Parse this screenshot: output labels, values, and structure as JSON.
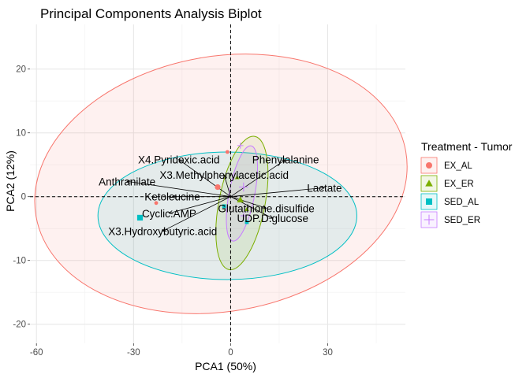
{
  "chart_data": {
    "type": "scatter",
    "title": "Principal Components Analysis Biplot",
    "xlabel": "PCA1 (50%)",
    "ylabel": "PCA2 (12%)",
    "xlim": [
      -62,
      54
    ],
    "ylim": [
      -23,
      27
    ],
    "x_ticks": [
      -60,
      -30,
      0,
      30
    ],
    "x_tick_labels": [
      "-60",
      "-30",
      "0",
      "30"
    ],
    "y_ticks": [
      -20,
      -10,
      0,
      10,
      20
    ],
    "y_tick_labels": [
      "-20",
      "-10",
      "0",
      "10",
      "20"
    ],
    "grid": true,
    "reference_lines": {
      "x": 0,
      "y": 0,
      "style": "dashed"
    },
    "legend": {
      "title": "Treatment - Tumor",
      "position": "right",
      "entries": [
        {
          "label": "EX_AL",
          "color": "#F8766D",
          "shape": "circle"
        },
        {
          "label": "EX_ER",
          "color": "#7CAE00",
          "shape": "triangle"
        },
        {
          "label": "SED_AL",
          "color": "#00BFC4",
          "shape": "square"
        },
        {
          "label": "SED_ER",
          "color": "#C77CFF",
          "shape": "plus"
        }
      ]
    },
    "ellipses": [
      {
        "group": "EX_AL",
        "cx": -3,
        "cy": 2,
        "rx": 58,
        "ry": 20,
        "angle": 10,
        "color": "#F8766D",
        "fill": "#F8766D"
      },
      {
        "group": "SED_AL",
        "cx": -1,
        "cy": -3,
        "rx": 40,
        "ry": 10,
        "angle": 0,
        "color": "#00BFC4",
        "fill": "#00BFC4"
      },
      {
        "group": "EX_ER",
        "cx": 3.5,
        "cy": -1,
        "rx": 21,
        "ry": 3.6,
        "angle": 79,
        "color": "#7CAE00",
        "fill": "#7CAE00"
      },
      {
        "group": "SED_ER",
        "cx": 3.5,
        "cy": 0.5,
        "rx": 15,
        "ry": 2,
        "angle": 79,
        "color": "#C77CFF",
        "fill": "#C77CFF"
      }
    ],
    "series": [
      {
        "name": "EX_AL",
        "points": [
          [
            -4,
            1.5
          ],
          [
            -23,
            -1
          ],
          [
            -1,
            7
          ]
        ]
      },
      {
        "name": "EX_ER",
        "points": [
          [
            3,
            -0.5
          ],
          [
            2,
            3
          ],
          [
            5,
            -2
          ]
        ]
      },
      {
        "name": "SED_AL",
        "points": [
          [
            -28,
            -3.3
          ],
          [
            -2,
            -1.5
          ],
          [
            5,
            -4
          ]
        ]
      },
      {
        "name": "SED_ER",
        "points": [
          [
            4,
            1.5
          ],
          [
            3,
            8
          ],
          [
            4,
            -3
          ]
        ]
      }
    ],
    "variables": [
      {
        "label": "X4.Pyridoxic.acid",
        "x": -16,
        "y": 5.8
      },
      {
        "label": "X3.Methylphenylacetic.acid",
        "x": -2,
        "y": 3.4
      },
      {
        "label": "Phenylalanine",
        "x": 17,
        "y": 5.8
      },
      {
        "label": "Anthranilate",
        "x": -32,
        "y": 2.4
      },
      {
        "label": "Lactate",
        "x": 29,
        "y": 1.4
      },
      {
        "label": "Ketoleucine",
        "x": -18,
        "y": 0
      },
      {
        "label": "Glutathione.disulfide",
        "x": 11,
        "y": -1.8
      },
      {
        "label": "Cyclic.AMP",
        "x": -19,
        "y": -2.6
      },
      {
        "label": "UDP.D.glucose",
        "x": 13,
        "y": -3.4
      },
      {
        "label": "X3.Hydroxybutyric.acid",
        "x": -21,
        "y": -5.4
      }
    ]
  }
}
